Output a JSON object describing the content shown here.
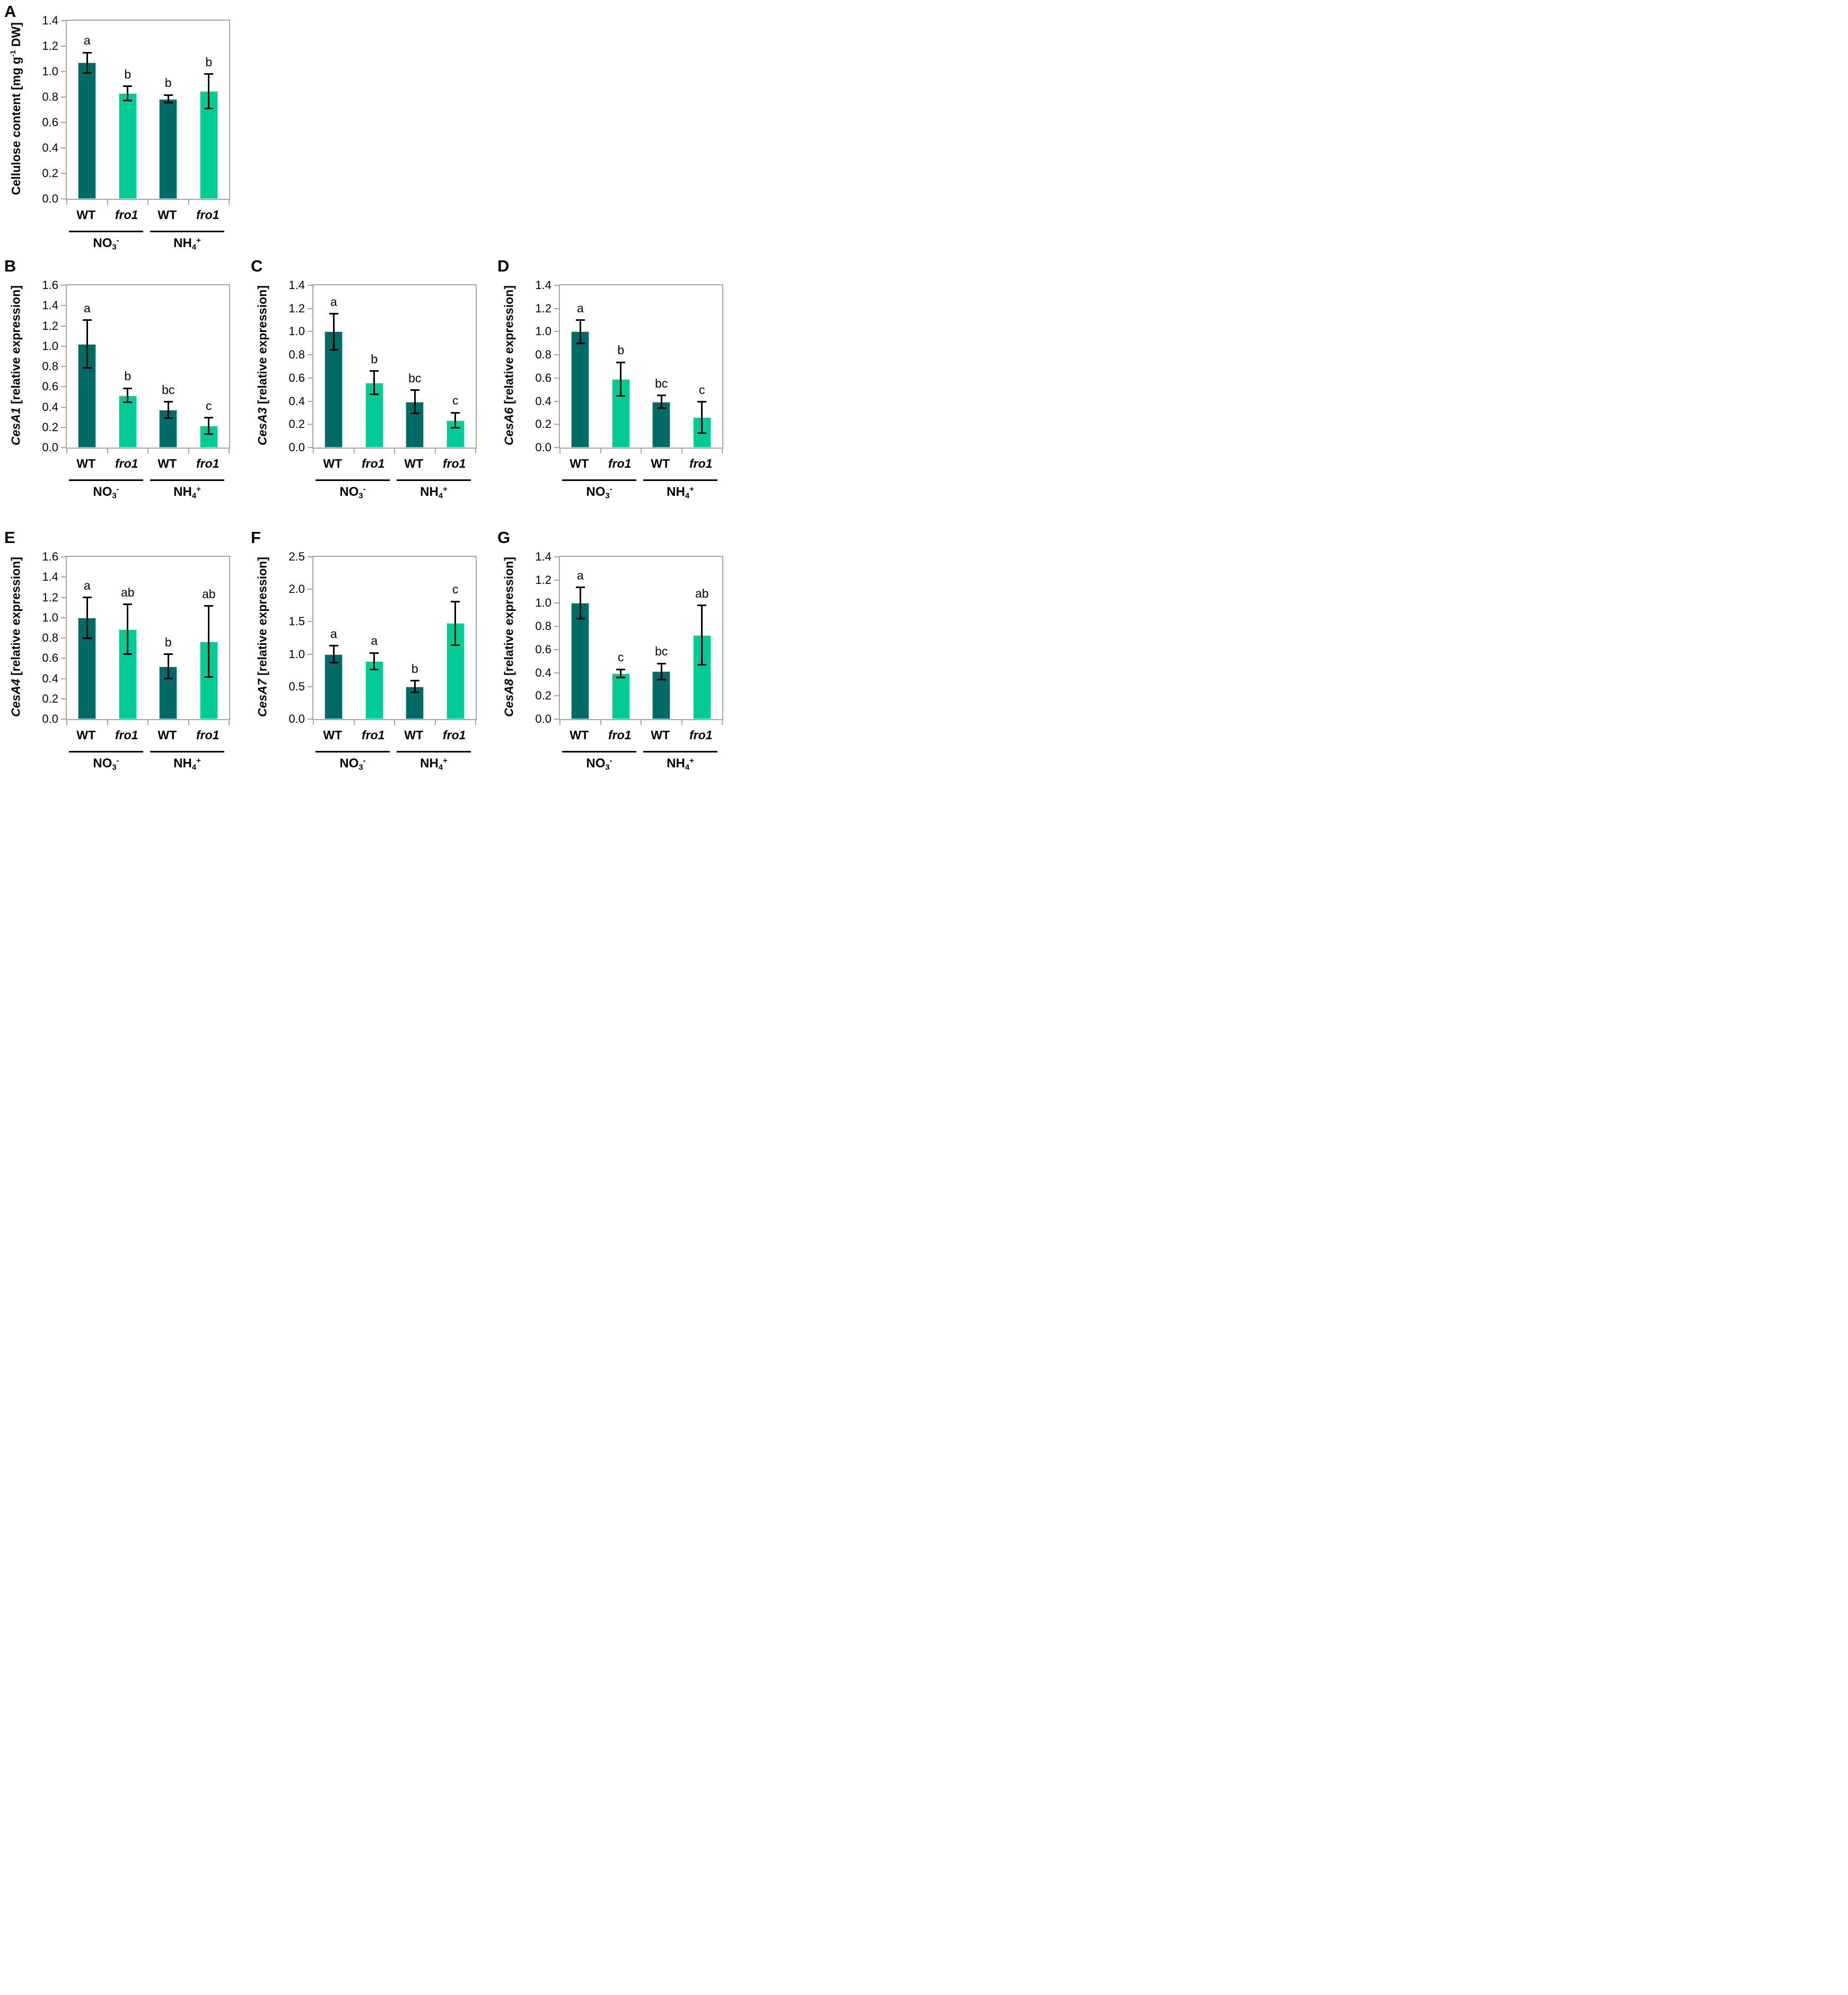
{
  "figure": {
    "title": "",
    "categories": [
      "WT",
      "fro1",
      "WT",
      "fro1"
    ],
    "groups": [
      {
        "base": "NO",
        "sub": "3",
        "sup": "-"
      },
      {
        "base": "NH",
        "sub": "4",
        "sup": "+"
      }
    ],
    "colors": {
      "wt_bar": "#006B66",
      "fro1_bar": "#02CB96",
      "wt_bar_edge": "#a9d6d3",
      "fro1_bar_edge": "#b0ecdb",
      "axis": "#a6a6a6",
      "error_bar": "#000000",
      "text": "#000000"
    }
  },
  "chart_data": [
    {
      "type": "bar",
      "panel": "A",
      "ylabel_segments": [
        {
          "t": "Cellulose content [mg g",
          "s": "n"
        },
        {
          "t": "-1",
          "s": "sup"
        },
        {
          "t": " DW]",
          "s": "n"
        }
      ],
      "ylabel_plain": "Cellulose content [mg g-1 DW]",
      "ylim": [
        0,
        1.4
      ],
      "ytick_step": 0.2,
      "categories": [
        "WT",
        "fro1",
        "WT",
        "fro1"
      ],
      "group_labels": [
        "NO3-",
        "NH4+"
      ],
      "values": [
        1.07,
        0.83,
        0.785,
        0.845
      ],
      "errors": [
        0.08,
        0.055,
        0.03,
        0.135
      ],
      "sig_letters": [
        "a",
        "b",
        "b",
        "b"
      ]
    },
    {
      "type": "bar",
      "panel": "B",
      "ylabel_segments": [
        {
          "t": "CesA1",
          "s": "i"
        },
        {
          "t": " [relative expression]",
          "s": "n"
        }
      ],
      "ylabel_plain": "CesA1 [relative expression]",
      "ylim": [
        0,
        1.6
      ],
      "ytick_step": 0.2,
      "categories": [
        "WT",
        "fro1",
        "WT",
        "fro1"
      ],
      "group_labels": [
        "NO3-",
        "NH4+"
      ],
      "values": [
        1.02,
        0.515,
        0.37,
        0.215
      ],
      "errors": [
        0.235,
        0.07,
        0.08,
        0.08
      ],
      "sig_letters": [
        "a",
        "b",
        "bc",
        "c"
      ]
    },
    {
      "type": "bar",
      "panel": "C",
      "ylabel_segments": [
        {
          "t": "CesA3",
          "s": "i"
        },
        {
          "t": " [relative expression]",
          "s": "n"
        }
      ],
      "ylabel_plain": "CesA3 [relative expression]",
      "ylim": [
        0,
        1.4
      ],
      "ytick_step": 0.2,
      "categories": [
        "WT",
        "fro1",
        "WT",
        "fro1"
      ],
      "group_labels": [
        "NO3-",
        "NH4+"
      ],
      "values": [
        1.0,
        0.56,
        0.395,
        0.235
      ],
      "errors": [
        0.155,
        0.1,
        0.1,
        0.065
      ],
      "sig_letters": [
        "a",
        "b",
        "bc",
        "c"
      ]
    },
    {
      "type": "bar",
      "panel": "D",
      "ylabel_segments": [
        {
          "t": "CesA6",
          "s": "i"
        },
        {
          "t": " [relative expression]",
          "s": "n"
        }
      ],
      "ylabel_plain": "CesA6 [relative expression]",
      "ylim": [
        0,
        1.4
      ],
      "ytick_step": 0.2,
      "categories": [
        "WT",
        "fro1",
        "WT",
        "fro1"
      ],
      "group_labels": [
        "NO3-",
        "NH4+"
      ],
      "values": [
        1.0,
        0.59,
        0.395,
        0.26
      ],
      "errors": [
        0.1,
        0.145,
        0.055,
        0.135
      ],
      "sig_letters": [
        "a",
        "b",
        "bc",
        "c"
      ]
    },
    {
      "type": "bar",
      "panel": "E",
      "ylabel_segments": [
        {
          "t": "CesA4",
          "s": "i"
        },
        {
          "t": " [relative expression]",
          "s": "n"
        }
      ],
      "ylabel_plain": "CesA4 [relative expression]",
      "ylim": [
        0,
        1.6
      ],
      "ytick_step": 0.2,
      "categories": [
        "WT",
        "fro1",
        "WT",
        "fro1"
      ],
      "group_labels": [
        "NO3-",
        "NH4+"
      ],
      "values": [
        1.0,
        0.885,
        0.52,
        0.765
      ],
      "errors": [
        0.2,
        0.245,
        0.12,
        0.35
      ],
      "sig_letters": [
        "a",
        "ab",
        "b",
        "ab"
      ]
    },
    {
      "type": "bar",
      "panel": "F",
      "ylabel_segments": [
        {
          "t": "CesA7",
          "s": "i"
        },
        {
          "t": " [relative expression]",
          "s": "n"
        }
      ],
      "ylabel_plain": "CesA7 [relative expression]",
      "ylim": [
        0,
        2.5
      ],
      "ytick_step": 0.5,
      "categories": [
        "WT",
        "fro1",
        "WT",
        "fro1"
      ],
      "group_labels": [
        "NO3-",
        "NH4+"
      ],
      "values": [
        1.0,
        0.89,
        0.5,
        1.475
      ],
      "errors": [
        0.13,
        0.13,
        0.09,
        0.335
      ],
      "sig_letters": [
        "a",
        "a",
        "b",
        "c"
      ]
    },
    {
      "type": "bar",
      "panel": "G",
      "ylabel_segments": [
        {
          "t": "CesA8",
          "s": "i"
        },
        {
          "t": " [relative expression]",
          "s": "n"
        }
      ],
      "ylabel_plain": "CesA8 [relative expression]",
      "ylim": [
        0,
        1.4
      ],
      "ytick_step": 0.2,
      "categories": [
        "WT",
        "fro1",
        "WT",
        "fro1"
      ],
      "group_labels": [
        "NO3-",
        "NH4+"
      ],
      "values": [
        1.0,
        0.395,
        0.41,
        0.725
      ],
      "errors": [
        0.135,
        0.035,
        0.07,
        0.255
      ],
      "sig_letters": [
        "a",
        "c",
        "bc",
        "ab"
      ]
    }
  ]
}
